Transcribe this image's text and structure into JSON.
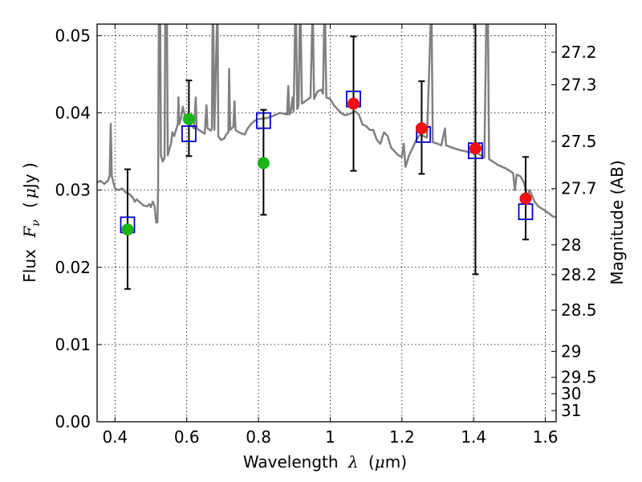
{
  "chart_data": {
    "type": "scatter",
    "xlabel_prefix": "Wavelength",
    "xlabel_symbol": "λ",
    "xlabel_unit_open": "(",
    "xlabel_unit_mu": "μ",
    "xlabel_unit_rest": "m)",
    "ylabel_prefix": "Flux",
    "ylabel_symbol": "F",
    "ylabel_sub": "ν",
    "ylabel_unit_open": "(",
    "ylabel_unit_mu": "μ",
    "ylabel_unit_rest": "Jy )",
    "y2label": "Magnitude (AB)",
    "xlim": [
      0.35,
      1.63
    ],
    "ylim": [
      0.0,
      0.0515
    ],
    "grid": true,
    "x_ticks": [
      {
        "v": 0.4,
        "label": "0.4"
      },
      {
        "v": 0.6,
        "label": "0.6"
      },
      {
        "v": 0.8,
        "label": "0.8"
      },
      {
        "v": 1.0,
        "label": "1"
      },
      {
        "v": 1.2,
        "label": "1.2"
      },
      {
        "v": 1.4,
        "label": "1.4"
      },
      {
        "v": 1.6,
        "label": "1.6"
      }
    ],
    "y_ticks": [
      {
        "v": 0.0,
        "label": "0.00"
      },
      {
        "v": 0.01,
        "label": "0.01"
      },
      {
        "v": 0.02,
        "label": "0.02"
      },
      {
        "v": 0.03,
        "label": "0.03"
      },
      {
        "v": 0.04,
        "label": "0.04"
      },
      {
        "v": 0.05,
        "label": "0.05"
      }
    ],
    "mag_ticks": [
      {
        "mag": 27.2,
        "label": "27.2"
      },
      {
        "mag": 27.3,
        "label": "27.3"
      },
      {
        "mag": 27.5,
        "label": "27.5"
      },
      {
        "mag": 27.7,
        "label": "27.7"
      },
      {
        "mag": 28.0,
        "label": "28"
      },
      {
        "mag": 28.2,
        "label": "28.2"
      },
      {
        "mag": 28.5,
        "label": "28.5"
      },
      {
        "mag": 29.0,
        "label": "29"
      },
      {
        "mag": 29.5,
        "label": "29.5"
      },
      {
        "mag": 30.0,
        "label": "30"
      },
      {
        "mag": 31.0,
        "label": "31"
      }
    ],
    "observed": [
      {
        "x": 0.435,
        "y": 0.0249,
        "yerr_lo": 0.0172,
        "yerr_hi": 0.0327,
        "color": "#1ab31a"
      },
      {
        "x": 0.606,
        "y": 0.0392,
        "yerr_lo": 0.0344,
        "yerr_hi": 0.0442,
        "color": "#1ab31a"
      },
      {
        "x": 0.814,
        "y": 0.0335,
        "yerr_lo": 0.0268,
        "yerr_hi": 0.0404,
        "color": "#1ab31a"
      },
      {
        "x": 1.065,
        "y": 0.0412,
        "yerr_lo": 0.0325,
        "yerr_hi": 0.0499,
        "color": "#ee1111"
      },
      {
        "x": 1.255,
        "y": 0.038,
        "yerr_lo": 0.0321,
        "yerr_hi": 0.0441,
        "color": "#ee1111"
      },
      {
        "x": 1.405,
        "y": 0.0354,
        "yerr_lo": 0.0191,
        "yerr_hi": 0.052,
        "color": "#ee1111"
      },
      {
        "x": 1.545,
        "y": 0.0289,
        "yerr_lo": 0.0236,
        "yerr_hi": 0.0343,
        "color": "#ee1111"
      }
    ],
    "model_photometry": [
      {
        "x": 0.435,
        "y": 0.0255
      },
      {
        "x": 0.606,
        "y": 0.0373
      },
      {
        "x": 0.814,
        "y": 0.039
      },
      {
        "x": 1.065,
        "y": 0.0418
      },
      {
        "x": 1.26,
        "y": 0.0372
      },
      {
        "x": 1.405,
        "y": 0.0351
      },
      {
        "x": 1.545,
        "y": 0.0272
      }
    ],
    "spectrum": [
      [
        0.35,
        0.031
      ],
      [
        0.36,
        0.0312
      ],
      [
        0.37,
        0.0308
      ],
      [
        0.38,
        0.0312
      ],
      [
        0.385,
        0.0318
      ],
      [
        0.388,
        0.0386
      ],
      [
        0.391,
        0.0318
      ],
      [
        0.4,
        0.0302
      ],
      [
        0.41,
        0.03
      ],
      [
        0.42,
        0.0302
      ],
      [
        0.43,
        0.0297
      ],
      [
        0.44,
        0.0295
      ],
      [
        0.45,
        0.029
      ],
      [
        0.455,
        0.0285
      ],
      [
        0.46,
        0.0288
      ],
      [
        0.47,
        0.0284
      ],
      [
        0.48,
        0.028
      ],
      [
        0.49,
        0.0279
      ],
      [
        0.496,
        0.0282
      ],
      [
        0.5,
        0.0278
      ],
      [
        0.505,
        0.0285
      ],
      [
        0.51,
        0.028
      ],
      [
        0.515,
        0.0258
      ],
      [
        0.518,
        0.0258
      ],
      [
        0.52,
        0.03
      ],
      [
        0.522,
        0.0515
      ],
      [
        0.526,
        0.0515
      ],
      [
        0.528,
        0.0345
      ],
      [
        0.533,
        0.0337
      ],
      [
        0.538,
        0.0342
      ],
      [
        0.54,
        0.0515
      ],
      [
        0.545,
        0.0515
      ],
      [
        0.547,
        0.0345
      ],
      [
        0.556,
        0.036
      ],
      [
        0.56,
        0.0375
      ],
      [
        0.565,
        0.037
      ],
      [
        0.57,
        0.0378
      ],
      [
        0.575,
        0.0385
      ],
      [
        0.577,
        0.042
      ],
      [
        0.579,
        0.0385
      ],
      [
        0.585,
        0.0395
      ],
      [
        0.589,
        0.0408
      ],
      [
        0.593,
        0.04
      ],
      [
        0.6,
        0.039
      ],
      [
        0.61,
        0.0385
      ],
      [
        0.62,
        0.038
      ],
      [
        0.625,
        0.042
      ],
      [
        0.628,
        0.038
      ],
      [
        0.64,
        0.0376
      ],
      [
        0.65,
        0.0373
      ],
      [
        0.655,
        0.041
      ],
      [
        0.658,
        0.038
      ],
      [
        0.667,
        0.0377
      ],
      [
        0.67,
        0.038
      ],
      [
        0.672,
        0.0515
      ],
      [
        0.674,
        0.0515
      ],
      [
        0.677,
        0.0378
      ],
      [
        0.684,
        0.0515
      ],
      [
        0.686,
        0.0515
      ],
      [
        0.688,
        0.037
      ],
      [
        0.695,
        0.0365
      ],
      [
        0.705,
        0.0367
      ],
      [
        0.71,
        0.0372
      ],
      [
        0.716,
        0.0375
      ],
      [
        0.718,
        0.0457
      ],
      [
        0.721,
        0.0378
      ],
      [
        0.73,
        0.0382
      ],
      [
        0.733,
        0.0415
      ],
      [
        0.736,
        0.0378
      ],
      [
        0.745,
        0.0375
      ],
      [
        0.755,
        0.0373
      ],
      [
        0.762,
        0.0372
      ],
      [
        0.77,
        0.038
      ],
      [
        0.78,
        0.0386
      ],
      [
        0.79,
        0.039
      ],
      [
        0.8,
        0.0392
      ],
      [
        0.82,
        0.0393
      ],
      [
        0.84,
        0.0396
      ],
      [
        0.86,
        0.04
      ],
      [
        0.88,
        0.0398
      ],
      [
        0.883,
        0.0435
      ],
      [
        0.886,
        0.0398
      ],
      [
        0.89,
        0.04
      ],
      [
        0.895,
        0.042
      ],
      [
        0.898,
        0.0402
      ],
      [
        0.902,
        0.0515
      ],
      [
        0.905,
        0.0515
      ],
      [
        0.908,
        0.0405
      ],
      [
        0.912,
        0.041
      ],
      [
        0.915,
        0.0515
      ],
      [
        0.918,
        0.0515
      ],
      [
        0.921,
        0.0412
      ],
      [
        0.93,
        0.0415
      ],
      [
        0.945,
        0.042
      ],
      [
        0.95,
        0.0515
      ],
      [
        0.952,
        0.0515
      ],
      [
        0.955,
        0.0418
      ],
      [
        0.965,
        0.0428
      ],
      [
        0.975,
        0.043
      ],
      [
        0.98,
        0.0425
      ],
      [
        0.983,
        0.0515
      ],
      [
        0.986,
        0.0515
      ],
      [
        0.989,
        0.042
      ],
      [
        1.0,
        0.0418
      ],
      [
        1.01,
        0.041
      ],
      [
        1.02,
        0.0405
      ],
      [
        1.03,
        0.04
      ],
      [
        1.04,
        0.0397
      ],
      [
        1.05,
        0.0398
      ],
      [
        1.06,
        0.04
      ],
      [
        1.07,
        0.0402
      ],
      [
        1.08,
        0.0398
      ],
      [
        1.09,
        0.0385
      ],
      [
        1.1,
        0.0383
      ],
      [
        1.11,
        0.0378
      ],
      [
        1.12,
        0.0378
      ],
      [
        1.13,
        0.0365
      ],
      [
        1.14,
        0.036
      ],
      [
        1.15,
        0.0375
      ],
      [
        1.16,
        0.037
      ],
      [
        1.17,
        0.0355
      ],
      [
        1.18,
        0.035
      ],
      [
        1.19,
        0.0345
      ],
      [
        1.2,
        0.0343
      ],
      [
        1.205,
        0.036
      ],
      [
        1.21,
        0.033
      ],
      [
        1.22,
        0.0345
      ],
      [
        1.23,
        0.0355
      ],
      [
        1.24,
        0.0365
      ],
      [
        1.25,
        0.0372
      ],
      [
        1.26,
        0.037
      ],
      [
        1.27,
        0.0368
      ],
      [
        1.28,
        0.0515
      ],
      [
        1.283,
        0.0515
      ],
      [
        1.286,
        0.0362
      ],
      [
        1.3,
        0.036
      ],
      [
        1.31,
        0.0358
      ],
      [
        1.32,
        0.038
      ],
      [
        1.323,
        0.0358
      ],
      [
        1.34,
        0.0355
      ],
      [
        1.36,
        0.0352
      ],
      [
        1.38,
        0.035
      ],
      [
        1.4,
        0.0348
      ],
      [
        1.41,
        0.0348
      ],
      [
        1.42,
        0.0345
      ],
      [
        1.43,
        0.0342
      ],
      [
        1.435,
        0.0515
      ],
      [
        1.44,
        0.0515
      ],
      [
        1.443,
        0.034
      ],
      [
        1.45,
        0.0338
      ],
      [
        1.46,
        0.0335
      ],
      [
        1.47,
        0.0332
      ],
      [
        1.48,
        0.033
      ],
      [
        1.49,
        0.0328
      ],
      [
        1.5,
        0.0325
      ],
      [
        1.51,
        0.0322
      ],
      [
        1.515,
        0.03
      ],
      [
        1.52,
        0.032
      ],
      [
        1.53,
        0.0318
      ],
      [
        1.54,
        0.031
      ],
      [
        1.55,
        0.029
      ],
      [
        1.555,
        0.03
      ],
      [
        1.56,
        0.0296
      ],
      [
        1.57,
        0.0285
      ],
      [
        1.58,
        0.0279
      ],
      [
        1.59,
        0.0276
      ],
      [
        1.6,
        0.0273
      ],
      [
        1.61,
        0.027
      ],
      [
        1.62,
        0.0266
      ],
      [
        1.63,
        0.0265
      ]
    ],
    "colors": {
      "spectrum": "#808080",
      "model_box": "#0000cc",
      "errorbar": "#000000",
      "grid": "#000000"
    }
  }
}
